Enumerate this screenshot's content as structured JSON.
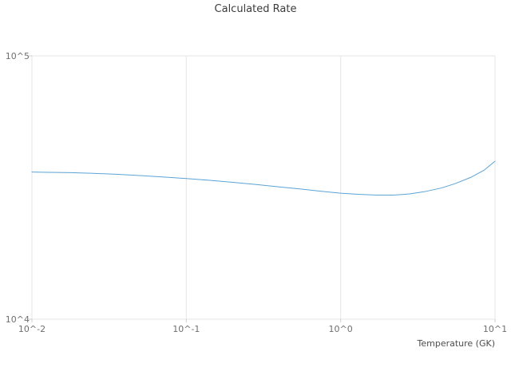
{
  "chart_data": {
    "type": "line",
    "title": "Calculated Rate",
    "xlabel": "Temperature (GK)",
    "ylabel": "",
    "xscale": "log",
    "yscale": "log",
    "xlim": [
      0.01,
      10
    ],
    "ylim": [
      10000,
      100000
    ],
    "grid": true,
    "legend": "none",
    "line_color": "#5ba3d6",
    "grid_color": "#e5e5e5",
    "xticks": [
      {
        "value": 0.01,
        "label": "10^-2"
      },
      {
        "value": 0.1,
        "label": "10^-1"
      },
      {
        "value": 1,
        "label": "10^0"
      },
      {
        "value": 10,
        "label": "10^1"
      }
    ],
    "yticks": [
      {
        "value": 100000,
        "label": "10^5"
      },
      {
        "value": 10000,
        "label": "10^4"
      }
    ],
    "series": [
      {
        "name": "calculated-rate",
        "x": [
          0.01,
          0.013,
          0.018,
          0.025,
          0.035,
          0.05,
          0.07,
          0.1,
          0.14,
          0.2,
          0.28,
          0.4,
          0.55,
          0.75,
          1.0,
          1.3,
          1.7,
          2.2,
          2.8,
          3.5,
          4.5,
          5.5,
          7.0,
          8.5,
          10.0
        ],
        "y": [
          36200,
          36100,
          36000,
          35800,
          35500,
          35100,
          34700,
          34200,
          33700,
          33100,
          32500,
          31800,
          31200,
          30600,
          30100,
          29800,
          29600,
          29600,
          29900,
          30500,
          31500,
          32700,
          34600,
          36800,
          39800
        ]
      }
    ]
  }
}
